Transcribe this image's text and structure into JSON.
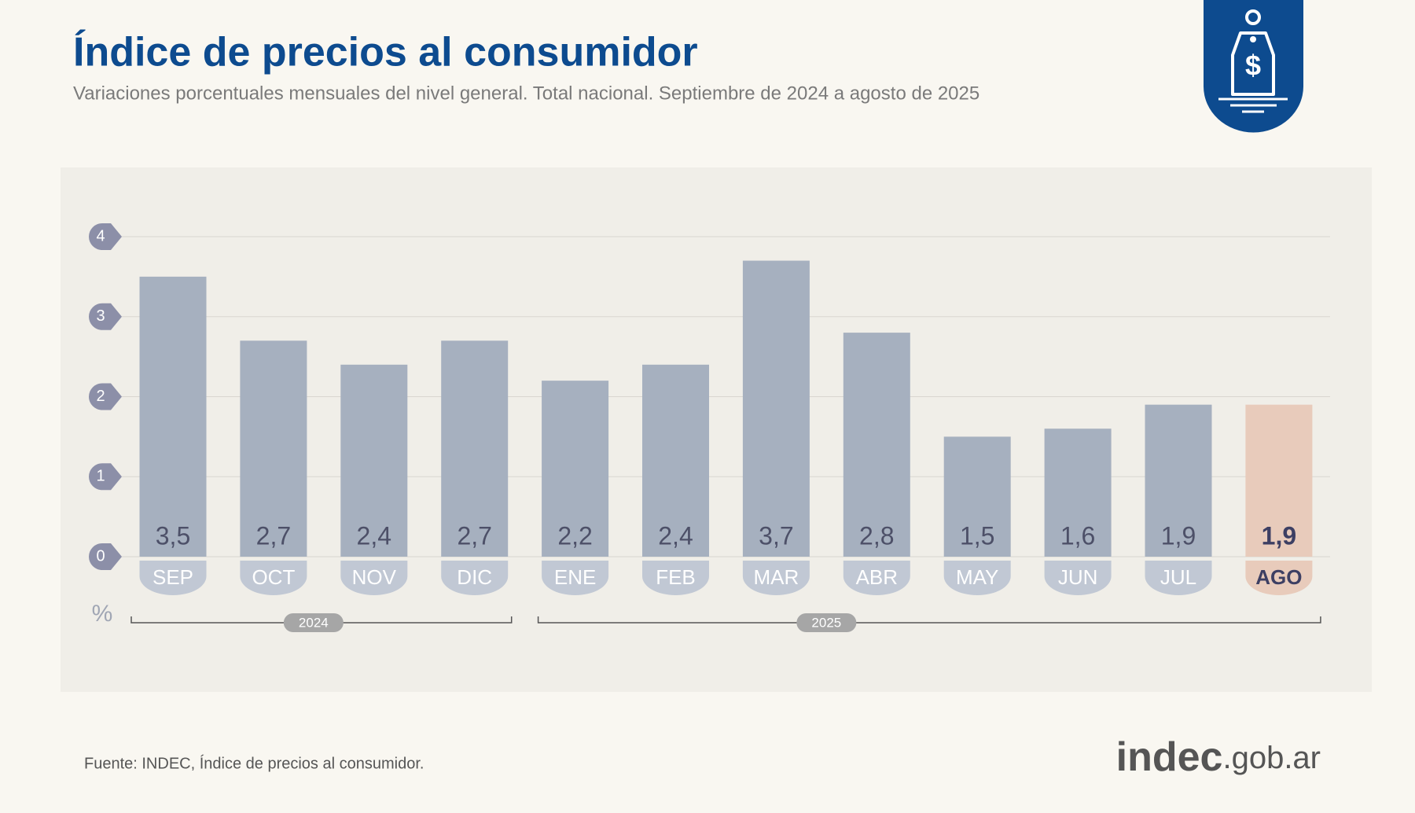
{
  "chart_data": {
    "type": "bar",
    "title": "Índice de precios al consumidor",
    "subtitle": "Variaciones porcentuales mensuales del nivel general. Total nacional. Septiembre de 2024 a agosto de 2025",
    "categories": [
      "SEP",
      "OCT",
      "NOV",
      "DIC",
      "ENE",
      "FEB",
      "MAR",
      "ABR",
      "MAY",
      "JUN",
      "JUL",
      "AGO"
    ],
    "values": [
      3.5,
      2.7,
      2.4,
      2.7,
      2.2,
      2.4,
      3.7,
      2.8,
      1.5,
      1.6,
      1.9,
      1.9
    ],
    "value_labels": [
      "3,5",
      "2,7",
      "2,4",
      "2,7",
      "2,2",
      "2,4",
      "3,7",
      "2,8",
      "1,5",
      "1,6",
      "1,9",
      "1,9"
    ],
    "color": "#a6b0bf",
    "colors": [
      "#a6b0bf",
      "#a6b0bf",
      "#a6b0bf",
      "#a6b0bf",
      "#a6b0bf",
      "#a6b0bf",
      "#a6b0bf",
      "#a6b0bf",
      "#a6b0bf",
      "#a6b0bf",
      "#a6b0bf",
      "#e8cbbb"
    ],
    "ylim": [
      0,
      4
    ],
    "yticks": [
      0,
      1,
      2,
      3,
      4
    ],
    "grid": true,
    "y_unit": "%",
    "year_groups": [
      {
        "label": "2024",
        "count": 4
      },
      {
        "label": "2025",
        "count": 8
      }
    ],
    "source": "Fuente: INDEC, Índice de precios al consumidor.",
    "logo": {
      "main": "indec",
      "suffix": ".gob.ar"
    }
  }
}
